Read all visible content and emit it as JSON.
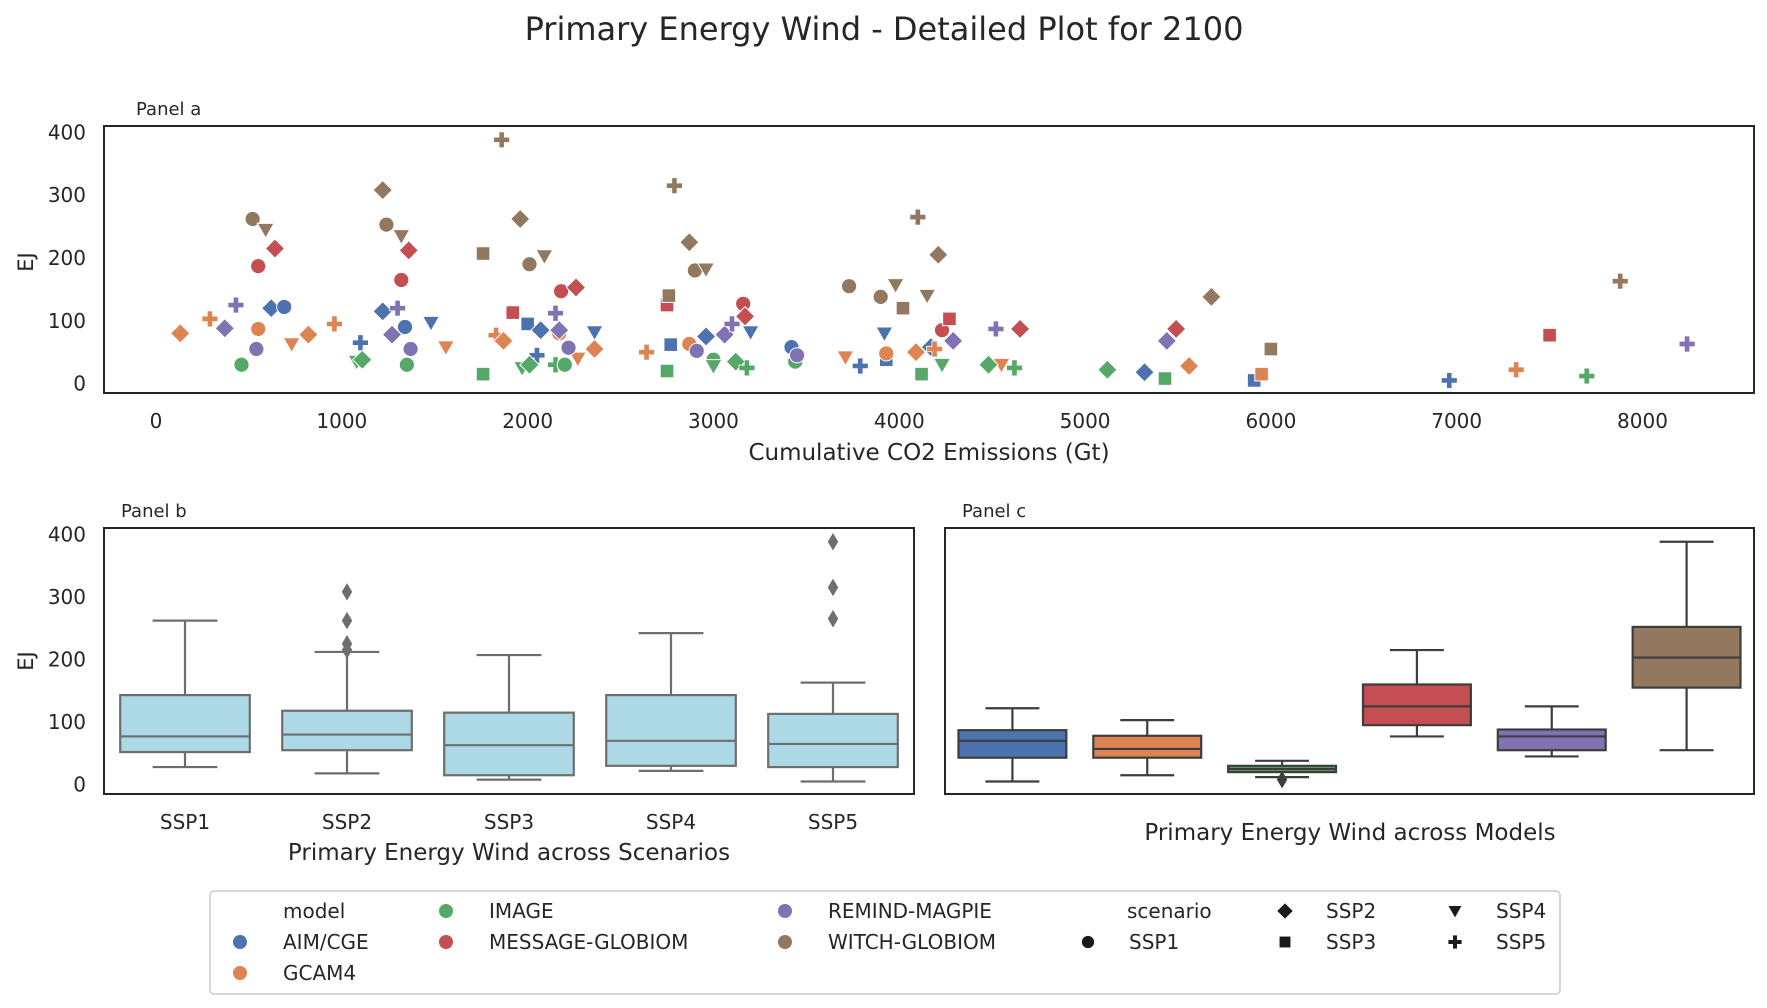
{
  "figure": {
    "title": "Primary Energy Wind - Detailed Plot for 2100"
  },
  "colors": {
    "AIM/CGE": "#4c72b0",
    "GCAM4": "#dd8452",
    "IMAGE": "#55a868",
    "MESSAGE-GLOBIOM": "#c44e52",
    "REMIND-MAGPIE": "#8172b3",
    "WITCH-GLOBIOM": "#937860",
    "box_scenario": "#add8e6",
    "box_line": "#6e6e6e",
    "axis": "#262626"
  },
  "legend": {
    "model_title": "model",
    "models": [
      "AIM/CGE",
      "GCAM4",
      "IMAGE",
      "MESSAGE-GLOBIOM",
      "REMIND-MAGPIE",
      "WITCH-GLOBIOM"
    ],
    "scenario_title": "scenario",
    "scenarios": [
      "SSP1",
      "SSP2",
      "SSP3",
      "SSP4",
      "SSP5"
    ],
    "scenario_markers": {
      "SSP1": "circle",
      "SSP2": "diamond",
      "SSP3": "square",
      "SSP4": "triangle-down",
      "SSP5": "plus"
    },
    "placement": "bottom-center"
  },
  "chart_data": [
    {
      "type": "scatter",
      "panel_label": "Panel a",
      "xlabel": "Cumulative CO2 Emissions (Gt)",
      "ylabel": "EJ",
      "xlim": [
        -280,
        8600
      ],
      "ylim": [
        -15,
        410
      ],
      "xticks": [
        0,
        1000,
        2000,
        3000,
        4000,
        5000,
        6000,
        7000,
        8000
      ],
      "yticks": [
        0,
        100,
        200,
        300,
        400
      ],
      "grid": false,
      "series": [
        {
          "name": "AIM/CGE",
          "points": [
            {
              "x": 620,
              "y": 120,
              "scenario": "SSP2"
            },
            {
              "x": 690,
              "y": 122,
              "scenario": "SSP1"
            },
            {
              "x": 1220,
              "y": 115,
              "scenario": "SSP2"
            },
            {
              "x": 1340,
              "y": 90,
              "scenario": "SSP1"
            },
            {
              "x": 1480,
              "y": 97,
              "scenario": "SSP4"
            },
            {
              "x": 1100,
              "y": 65,
              "scenario": "SSP5"
            },
            {
              "x": 2000,
              "y": 95,
              "scenario": "SSP3"
            },
            {
              "x": 2070,
              "y": 85,
              "scenario": "SSP2"
            },
            {
              "x": 2360,
              "y": 82,
              "scenario": "SSP4"
            },
            {
              "x": 2050,
              "y": 45,
              "scenario": "SSP5"
            },
            {
              "x": 2770,
              "y": 62,
              "scenario": "SSP3"
            },
            {
              "x": 2960,
              "y": 75,
              "scenario": "SSP2"
            },
            {
              "x": 3200,
              "y": 82,
              "scenario": "SSP4"
            },
            {
              "x": 3420,
              "y": 58,
              "scenario": "SSP1"
            },
            {
              "x": 3790,
              "y": 28,
              "scenario": "SSP5"
            },
            {
              "x": 3920,
              "y": 80,
              "scenario": "SSP4"
            },
            {
              "x": 3930,
              "y": 38,
              "scenario": "SSP3"
            },
            {
              "x": 4170,
              "y": 58,
              "scenario": "SSP2"
            },
            {
              "x": 5320,
              "y": 18,
              "scenario": "SSP2"
            },
            {
              "x": 5910,
              "y": 5,
              "scenario": "SSP3"
            },
            {
              "x": 6960,
              "y": 5,
              "scenario": "SSP5"
            }
          ]
        },
        {
          "name": "GCAM4",
          "points": [
            {
              "x": 130,
              "y": 80,
              "scenario": "SSP2"
            },
            {
              "x": 290,
              "y": 103,
              "scenario": "SSP5"
            },
            {
              "x": 550,
              "y": 87,
              "scenario": "SSP1"
            },
            {
              "x": 730,
              "y": 63,
              "scenario": "SSP4"
            },
            {
              "x": 820,
              "y": 78,
              "scenario": "SSP2"
            },
            {
              "x": 960,
              "y": 95,
              "scenario": "SSP5"
            },
            {
              "x": 1560,
              "y": 58,
              "scenario": "SSP4"
            },
            {
              "x": 1830,
              "y": 77,
              "scenario": "SSP5"
            },
            {
              "x": 1870,
              "y": 68,
              "scenario": "SSP2"
            },
            {
              "x": 2170,
              "y": 80,
              "scenario": "SSP1"
            },
            {
              "x": 2270,
              "y": 40,
              "scenario": "SSP4"
            },
            {
              "x": 2360,
              "y": 55,
              "scenario": "SSP2"
            },
            {
              "x": 2640,
              "y": 50,
              "scenario": "SSP5"
            },
            {
              "x": 2870,
              "y": 63,
              "scenario": "SSP1"
            },
            {
              "x": 3710,
              "y": 42,
              "scenario": "SSP4"
            },
            {
              "x": 3930,
              "y": 48,
              "scenario": "SSP1"
            },
            {
              "x": 4090,
              "y": 50,
              "scenario": "SSP2"
            },
            {
              "x": 4190,
              "y": 55,
              "scenario": "SSP5"
            },
            {
              "x": 4550,
              "y": 30,
              "scenario": "SSP4"
            },
            {
              "x": 5560,
              "y": 28,
              "scenario": "SSP2"
            },
            {
              "x": 5950,
              "y": 15,
              "scenario": "SSP3"
            },
            {
              "x": 7320,
              "y": 22,
              "scenario": "SSP5"
            }
          ]
        },
        {
          "name": "IMAGE",
          "points": [
            {
              "x": 460,
              "y": 30,
              "scenario": "SSP1"
            },
            {
              "x": 1080,
              "y": 35,
              "scenario": "SSP4"
            },
            {
              "x": 1110,
              "y": 38,
              "scenario": "SSP2"
            },
            {
              "x": 1350,
              "y": 30,
              "scenario": "SSP1"
            },
            {
              "x": 1760,
              "y": 15,
              "scenario": "SSP3"
            },
            {
              "x": 1970,
              "y": 25,
              "scenario": "SSP4"
            },
            {
              "x": 2010,
              "y": 30,
              "scenario": "SSP2"
            },
            {
              "x": 2150,
              "y": 30,
              "scenario": "SSP5"
            },
            {
              "x": 2200,
              "y": 30,
              "scenario": "SSP1"
            },
            {
              "x": 2750,
              "y": 20,
              "scenario": "SSP3"
            },
            {
              "x": 3000,
              "y": 38,
              "scenario": "SSP1"
            },
            {
              "x": 3000,
              "y": 28,
              "scenario": "SSP4"
            },
            {
              "x": 3120,
              "y": 35,
              "scenario": "SSP2"
            },
            {
              "x": 3180,
              "y": 25,
              "scenario": "SSP5"
            },
            {
              "x": 3440,
              "y": 35,
              "scenario": "SSP1"
            },
            {
              "x": 4120,
              "y": 15,
              "scenario": "SSP3"
            },
            {
              "x": 4230,
              "y": 30,
              "scenario": "SSP4"
            },
            {
              "x": 4480,
              "y": 30,
              "scenario": "SSP2"
            },
            {
              "x": 4620,
              "y": 25,
              "scenario": "SSP5"
            },
            {
              "x": 5120,
              "y": 22,
              "scenario": "SSP2"
            },
            {
              "x": 5430,
              "y": 8,
              "scenario": "SSP3"
            },
            {
              "x": 7700,
              "y": 12,
              "scenario": "SSP5"
            }
          ]
        },
        {
          "name": "MESSAGE-GLOBIOM",
          "points": [
            {
              "x": 550,
              "y": 187,
              "scenario": "SSP1"
            },
            {
              "x": 640,
              "y": 215,
              "scenario": "SSP2"
            },
            {
              "x": 1320,
              "y": 165,
              "scenario": "SSP1"
            },
            {
              "x": 1360,
              "y": 212,
              "scenario": "SSP2"
            },
            {
              "x": 1920,
              "y": 113,
              "scenario": "SSP3"
            },
            {
              "x": 2180,
              "y": 147,
              "scenario": "SSP1"
            },
            {
              "x": 2260,
              "y": 153,
              "scenario": "SSP2"
            },
            {
              "x": 2750,
              "y": 125,
              "scenario": "SSP3"
            },
            {
              "x": 3160,
              "y": 127,
              "scenario": "SSP1"
            },
            {
              "x": 3170,
              "y": 107,
              "scenario": "SSP2"
            },
            {
              "x": 4230,
              "y": 85,
              "scenario": "SSP1"
            },
            {
              "x": 4270,
              "y": 103,
              "scenario": "SSP3"
            },
            {
              "x": 4650,
              "y": 87,
              "scenario": "SSP2"
            },
            {
              "x": 5490,
              "y": 87,
              "scenario": "SSP2"
            },
            {
              "x": 7500,
              "y": 77,
              "scenario": "SSP3"
            }
          ]
        },
        {
          "name": "REMIND-MAGPIE",
          "points": [
            {
              "x": 370,
              "y": 88,
              "scenario": "SSP2"
            },
            {
              "x": 430,
              "y": 125,
              "scenario": "SSP5"
            },
            {
              "x": 540,
              "y": 55,
              "scenario": "SSP1"
            },
            {
              "x": 1270,
              "y": 78,
              "scenario": "SSP2"
            },
            {
              "x": 1300,
              "y": 120,
              "scenario": "SSP5"
            },
            {
              "x": 1370,
              "y": 55,
              "scenario": "SSP1"
            },
            {
              "x": 2150,
              "y": 112,
              "scenario": "SSP5"
            },
            {
              "x": 2170,
              "y": 85,
              "scenario": "SSP2"
            },
            {
              "x": 2220,
              "y": 57,
              "scenario": "SSP1"
            },
            {
              "x": 2910,
              "y": 52,
              "scenario": "SSP1"
            },
            {
              "x": 3060,
              "y": 78,
              "scenario": "SSP2"
            },
            {
              "x": 3100,
              "y": 95,
              "scenario": "SSP5"
            },
            {
              "x": 3450,
              "y": 45,
              "scenario": "SSP1"
            },
            {
              "x": 4290,
              "y": 68,
              "scenario": "SSP2"
            },
            {
              "x": 4520,
              "y": 87,
              "scenario": "SSP5"
            },
            {
              "x": 5440,
              "y": 68,
              "scenario": "SSP2"
            },
            {
              "x": 8240,
              "y": 63,
              "scenario": "SSP5"
            }
          ]
        },
        {
          "name": "WITCH-GLOBIOM",
          "points": [
            {
              "x": 520,
              "y": 262,
              "scenario": "SSP1"
            },
            {
              "x": 590,
              "y": 245,
              "scenario": "SSP4"
            },
            {
              "x": 1220,
              "y": 308,
              "scenario": "SSP2"
            },
            {
              "x": 1240,
              "y": 253,
              "scenario": "SSP1"
            },
            {
              "x": 1320,
              "y": 235,
              "scenario": "SSP4"
            },
            {
              "x": 1760,
              "y": 207,
              "scenario": "SSP3"
            },
            {
              "x": 1860,
              "y": 388,
              "scenario": "SSP5"
            },
            {
              "x": 1960,
              "y": 262,
              "scenario": "SSP2"
            },
            {
              "x": 2010,
              "y": 190,
              "scenario": "SSP1"
            },
            {
              "x": 2090,
              "y": 203,
              "scenario": "SSP4"
            },
            {
              "x": 2760,
              "y": 140,
              "scenario": "SSP3"
            },
            {
              "x": 2790,
              "y": 315,
              "scenario": "SSP5"
            },
            {
              "x": 2870,
              "y": 225,
              "scenario": "SSP2"
            },
            {
              "x": 2900,
              "y": 180,
              "scenario": "SSP1"
            },
            {
              "x": 2960,
              "y": 182,
              "scenario": "SSP4"
            },
            {
              "x": 3730,
              "y": 155,
              "scenario": "SSP1"
            },
            {
              "x": 3900,
              "y": 138,
              "scenario": "SSP1"
            },
            {
              "x": 3980,
              "y": 157,
              "scenario": "SSP4"
            },
            {
              "x": 4020,
              "y": 120,
              "scenario": "SSP3"
            },
            {
              "x": 4100,
              "y": 265,
              "scenario": "SSP5"
            },
            {
              "x": 4150,
              "y": 140,
              "scenario": "SSP4"
            },
            {
              "x": 4210,
              "y": 205,
              "scenario": "SSP2"
            },
            {
              "x": 5680,
              "y": 138,
              "scenario": "SSP2"
            },
            {
              "x": 6000,
              "y": 55,
              "scenario": "SSP3"
            },
            {
              "x": 7880,
              "y": 163,
              "scenario": "SSP5"
            }
          ]
        }
      ]
    },
    {
      "type": "box",
      "panel_label": "Panel b",
      "xlabel": "Primary Energy Wind across Scenarios",
      "ylabel": "EJ",
      "ylim": [
        -15,
        410
      ],
      "yticks": [
        0,
        100,
        200,
        300,
        400
      ],
      "categories": [
        "SSP1",
        "SSP2",
        "SSP3",
        "SSP4",
        "SSP5"
      ],
      "boxes": [
        {
          "whislo": 28,
          "q1": 52,
          "med": 77,
          "q3": 143,
          "whishi": 262,
          "fliers": []
        },
        {
          "whislo": 18,
          "q1": 55,
          "med": 80,
          "q3": 118,
          "whishi": 212,
          "fliers": [
            308,
            262,
            225,
            215
          ]
        },
        {
          "whislo": 8,
          "q1": 15,
          "med": 63,
          "q3": 115,
          "whishi": 207,
          "fliers": []
        },
        {
          "whislo": 22,
          "q1": 30,
          "med": 70,
          "q3": 143,
          "whishi": 242,
          "fliers": []
        },
        {
          "whislo": 5,
          "q1": 28,
          "med": 65,
          "q3": 113,
          "whishi": 163,
          "fliers": [
            388,
            315,
            265
          ]
        }
      ]
    },
    {
      "type": "box",
      "panel_label": "Panel c",
      "xlabel": "Primary Energy Wind across Models",
      "ylim": [
        -15,
        410
      ],
      "categories": [
        "AIM/CGE",
        "GCAM4",
        "IMAGE",
        "MESSAGE-GLOBIOM",
        "REMIND-MAGPIE",
        "WITCH-GLOBIOM"
      ],
      "boxes": [
        {
          "whislo": 5,
          "q1": 43,
          "med": 70,
          "q3": 87,
          "whishi": 122,
          "fliers": []
        },
        {
          "whislo": 15,
          "q1": 43,
          "med": 57,
          "q3": 78,
          "whishi": 103,
          "fliers": []
        },
        {
          "whislo": 12,
          "q1": 20,
          "med": 25,
          "q3": 30,
          "whishi": 38,
          "fliers": [
            8
          ]
        },
        {
          "whislo": 77,
          "q1": 95,
          "med": 125,
          "q3": 160,
          "whishi": 215,
          "fliers": []
        },
        {
          "whislo": 45,
          "q1": 55,
          "med": 77,
          "q3": 88,
          "whishi": 125,
          "fliers": []
        },
        {
          "whislo": 55,
          "q1": 155,
          "med": 203,
          "q3": 252,
          "whishi": 388,
          "fliers": []
        }
      ]
    }
  ]
}
